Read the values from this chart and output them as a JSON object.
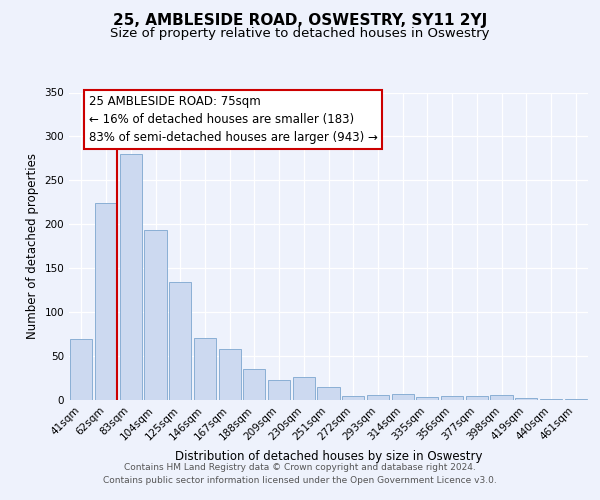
{
  "title": "25, AMBLESIDE ROAD, OSWESTRY, SY11 2YJ",
  "subtitle": "Size of property relative to detached houses in Oswestry",
  "xlabel": "Distribution of detached houses by size in Oswestry",
  "ylabel": "Number of detached properties",
  "categories": [
    "41sqm",
    "62sqm",
    "83sqm",
    "104sqm",
    "125sqm",
    "146sqm",
    "167sqm",
    "188sqm",
    "209sqm",
    "230sqm",
    "251sqm",
    "272sqm",
    "293sqm",
    "314sqm",
    "335sqm",
    "356sqm",
    "377sqm",
    "398sqm",
    "419sqm",
    "440sqm",
    "461sqm"
  ],
  "values": [
    70,
    224,
    280,
    193,
    134,
    71,
    58,
    35,
    23,
    26,
    15,
    5,
    6,
    7,
    3,
    4,
    5,
    6,
    2,
    1,
    1
  ],
  "bar_color": "#ccd9f0",
  "bar_edge_color": "#8aafd4",
  "vline_color": "#cc0000",
  "annotation_text": "25 AMBLESIDE ROAD: 75sqm\n← 16% of detached houses are smaller (183)\n83% of semi-detached houses are larger (943) →",
  "annotation_box_color": "#ffffff",
  "annotation_box_edge": "#cc0000",
  "ylim": [
    0,
    350
  ],
  "yticks": [
    0,
    50,
    100,
    150,
    200,
    250,
    300,
    350
  ],
  "bg_color": "#eef2fc",
  "plot_bg_color": "#eef2fc",
  "footer_line1": "Contains HM Land Registry data © Crown copyright and database right 2024.",
  "footer_line2": "Contains public sector information licensed under the Open Government Licence v3.0.",
  "title_fontsize": 11,
  "subtitle_fontsize": 9.5,
  "xlabel_fontsize": 8.5,
  "ylabel_fontsize": 8.5,
  "tick_fontsize": 7.5,
  "footer_fontsize": 6.5,
  "annotation_fontsize": 8.5
}
